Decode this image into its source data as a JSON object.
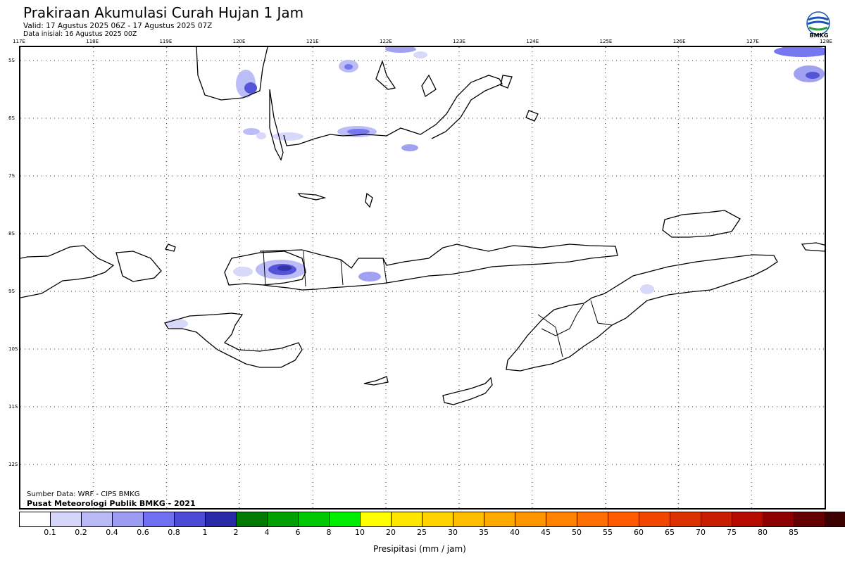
{
  "header": {
    "title": "Prakiraan Akumulasi Curah Hujan 1 Jam",
    "valid": "Valid: 17 Agustus 2025 06Z - 17 Agustus 2025 07Z",
    "init": "Data inisial: 16 Agustus 2025 00Z"
  },
  "logo": {
    "text": "BMKG",
    "icon": "bmkg-logo-icon"
  },
  "map": {
    "lon_ticks": [
      "117E",
      "118E",
      "119E",
      "120E",
      "121E",
      "122E",
      "123E",
      "124E",
      "125E",
      "126E",
      "127E",
      "128E"
    ],
    "lat_ticks": [
      "5S",
      "6S",
      "7S",
      "8S",
      "9S",
      "10S",
      "11S",
      "12S"
    ],
    "grid": true
  },
  "credits": {
    "source": "Sumber Data: WRF - CIPS BMKG",
    "org": "Pusat Meteorologi Publik BMKG - 2021"
  },
  "colorbar": {
    "colors": [
      "#ffffff",
      "#d6d6fb",
      "#b9b9f6",
      "#9c9cf2",
      "#6f6ff0",
      "#4b4bd6",
      "#2a2aa8",
      "#007a00",
      "#00a000",
      "#00c800",
      "#00ee00",
      "#ffff00",
      "#ffe600",
      "#ffd200",
      "#ffbe00",
      "#ffaa00",
      "#ff9600",
      "#ff8200",
      "#ff6e00",
      "#ff5a00",
      "#f04600",
      "#dc3200",
      "#c81e00",
      "#b40a00",
      "#8c0000",
      "#640000",
      "#3c0000"
    ],
    "labels": [
      "0.1",
      "0.2",
      "0.4",
      "0.6",
      "0.8",
      "1",
      "2",
      "4",
      "6",
      "8",
      "10",
      "20",
      "25",
      "30",
      "35",
      "40",
      "45",
      "50",
      "55",
      "60",
      "65",
      "70",
      "75",
      "80",
      "85"
    ],
    "unit": "Presipitasi (mm / jam)"
  }
}
